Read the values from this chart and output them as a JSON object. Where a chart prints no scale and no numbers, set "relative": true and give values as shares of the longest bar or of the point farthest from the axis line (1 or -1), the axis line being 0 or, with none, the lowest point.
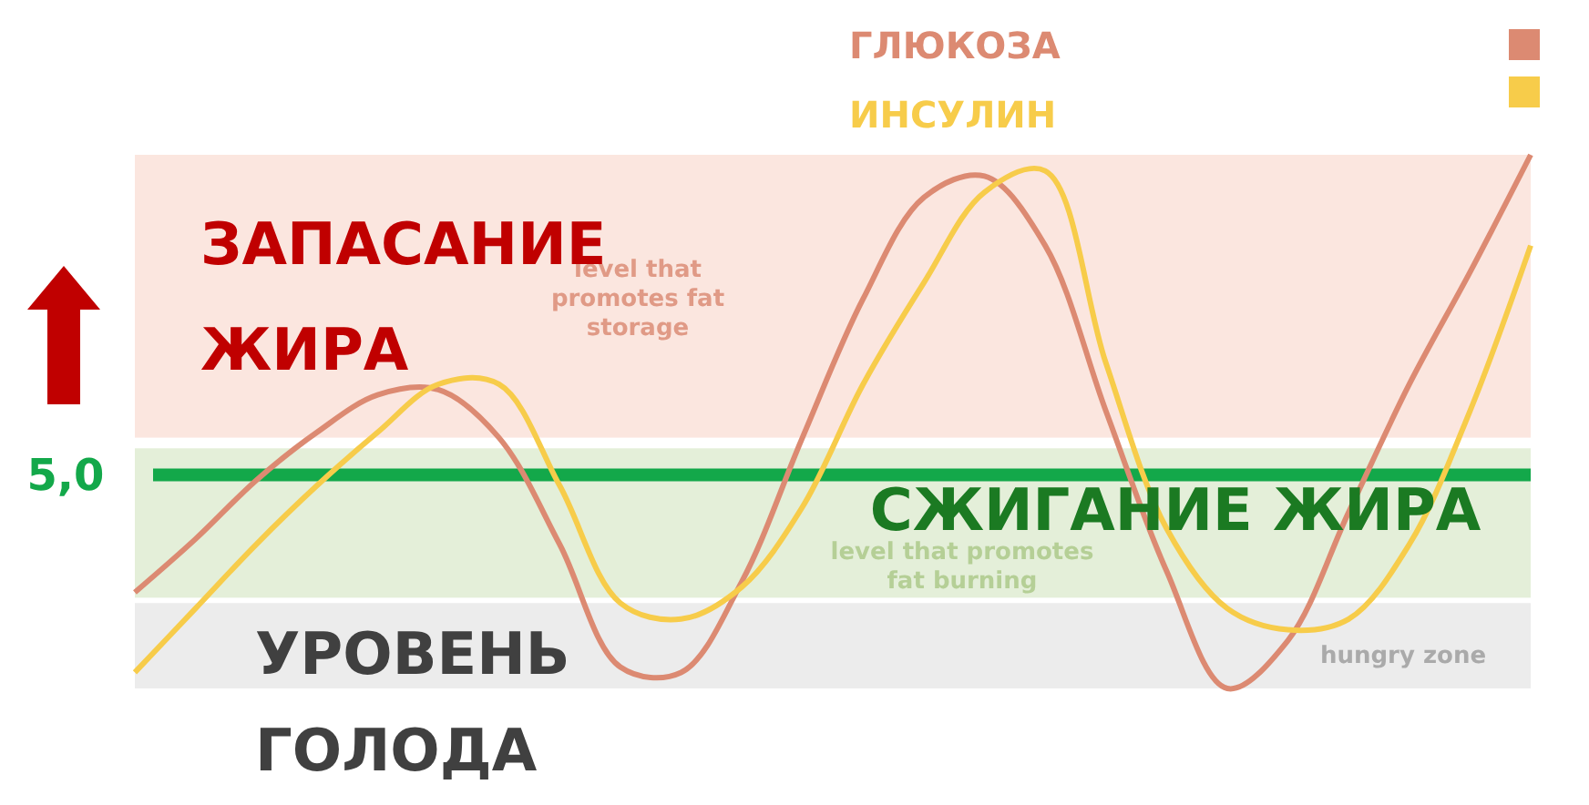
{
  "chart_data": {
    "type": "line",
    "relative": true,
    "categories": [
      null,
      null,
      null,
      null,
      null,
      null,
      null,
      null,
      null,
      null,
      null,
      null,
      null,
      null,
      null,
      null,
      null,
      null,
      null,
      null,
      null,
      null,
      null,
      null
    ],
    "series": [
      {
        "name": "ГЛЮКОЗА",
        "color": "#dc8a72",
        "values": [
          0.18,
          0.28,
          0.39,
          0.48,
          0.55,
          0.56,
          0.47,
          0.27,
          0.04,
          0.03,
          0.2,
          0.47,
          0.73,
          0.92,
          0.96,
          0.83,
          0.52,
          0.22,
          0,
          0.09,
          0.33,
          0.57,
          0.78,
          1
        ]
      },
      {
        "name": "ИНСУЛИН",
        "color": "#f7cc4a",
        "values": [
          0.03,
          0.15,
          0.27,
          0.38,
          0.48,
          0.57,
          0.57,
          0.38,
          0.16,
          0.13,
          0.19,
          0.34,
          0.57,
          0.76,
          0.93,
          0.97,
          0.61,
          0.3,
          0.15,
          0.11,
          0.13,
          0.27,
          0.52,
          0.83
        ]
      }
    ],
    "bands": [
      {
        "axis": "y",
        "from": 0.47,
        "to": 1,
        "label": "ЗАПАСАНИЕ ЖИРА",
        "color": "#fbe6df"
      },
      {
        "axis": "y",
        "from": 0.17,
        "to": 0.45,
        "label": "СЖИГАНИЕ ЖИРА",
        "color": "#e4efd9"
      },
      {
        "axis": "y",
        "from": 0,
        "to": 0.16,
        "label": "УРОВЕНЬ ГОЛОДА",
        "color": "#ececec"
      }
    ],
    "ref_lines": [
      {
        "axis": "y",
        "value": 0.4,
        "color": "#13a84a"
      }
    ],
    "annotations": [
      "level that promotes fat storage",
      "level that promotes fat burning",
      "hungry zone",
      "5,0"
    ],
    "legend": "top",
    "line_style": "solid"
  }
}
